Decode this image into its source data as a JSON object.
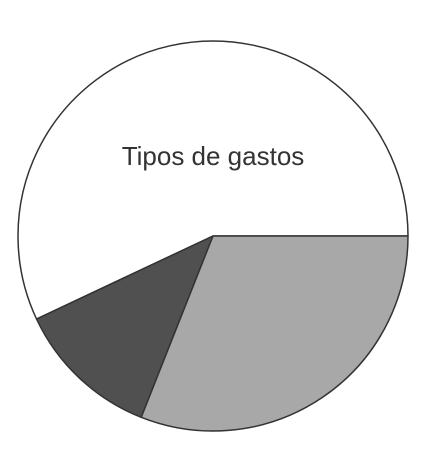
{
  "chart_data": {
    "type": "pie",
    "title": "Tipos de gastos",
    "categories": [
      "",
      "",
      ""
    ],
    "values": [
      57,
      31,
      12
    ],
    "colors": [
      "#ffffff",
      "#a8a8a8",
      "#505050"
    ],
    "stroke_color": "#333333"
  }
}
